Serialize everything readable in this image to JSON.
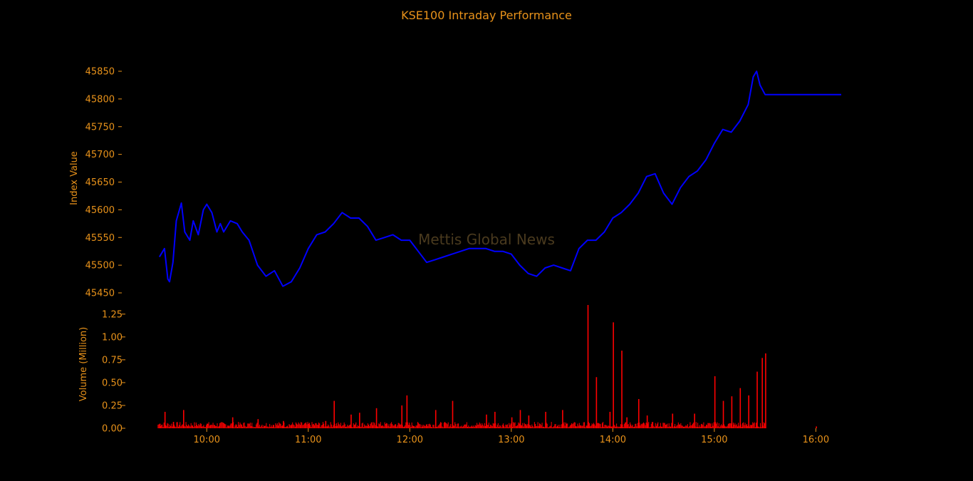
{
  "colors": {
    "background": "#000000",
    "text": "#e8921a",
    "index_line": "#0000ff",
    "volume_bars": "#ff0000",
    "watermark": "#4a3a1e"
  },
  "watermark": "Mettis Global News",
  "chart_data": [
    {
      "type": "line",
      "title": "KSE100 Intraday Performance",
      "ylabel": "Index Value",
      "xlabel": "",
      "ylim": [
        45440,
        45860
      ],
      "yticks": [
        45450,
        45500,
        45550,
        45600,
        45650,
        45700,
        45750,
        45800,
        45850
      ],
      "ytick_labels": [
        "45450",
        "45500",
        "45550",
        "45600",
        "45650",
        "45700",
        "45750",
        "45800",
        "45850"
      ],
      "grid": false,
      "series": [
        {
          "x": [
            "09:32",
            "09:35",
            "09:37",
            "09:38",
            "09:40",
            "09:42",
            "09:45",
            "09:47",
            "09:50",
            "09:52",
            "09:55",
            "09:58",
            "10:00",
            "10:03",
            "10:06",
            "10:08",
            "10:10",
            "10:14",
            "10:18",
            "10:21",
            "10:25",
            "10:30",
            "10:35",
            "10:40",
            "10:45",
            "10:50",
            "10:55",
            "11:00",
            "11:05",
            "11:10",
            "11:15",
            "11:20",
            "11:25",
            "11:30",
            "11:35",
            "11:40",
            "11:45",
            "11:50",
            "11:55",
            "12:00",
            "12:05",
            "12:10",
            "12:15",
            "12:20",
            "12:25",
            "12:30",
            "12:35",
            "12:40",
            "12:45",
            "12:50",
            "12:55",
            "13:00",
            "13:05",
            "13:10",
            "13:15",
            "13:20",
            "13:25",
            "13:30",
            "13:35",
            "13:40",
            "13:45",
            "13:50",
            "13:55",
            "14:00",
            "14:05",
            "14:10",
            "14:15",
            "14:20",
            "14:25",
            "14:30",
            "14:35",
            "14:40",
            "14:45",
            "14:50",
            "14:55",
            "15:00",
            "15:05",
            "15:10",
            "15:15",
            "15:20",
            "15:23",
            "15:25",
            "15:27",
            "15:30",
            "16:15"
          ],
          "y": [
            45515,
            45530,
            45475,
            45470,
            45505,
            45580,
            45612,
            45560,
            45545,
            45580,
            45555,
            45600,
            45610,
            45595,
            45560,
            45575,
            45560,
            45580,
            45575,
            45560,
            45545,
            45500,
            45480,
            45490,
            45462,
            45470,
            45495,
            45530,
            45555,
            45560,
            45575,
            45595,
            45585,
            45585,
            45570,
            45545,
            45550,
            45555,
            45545,
            45545,
            45525,
            45505,
            45510,
            45515,
            45520,
            45525,
            45530,
            45530,
            45530,
            45525,
            45525,
            45520,
            45500,
            45485,
            45480,
            45495,
            45500,
            45495,
            45490,
            45530,
            45545,
            45545,
            45560,
            45585,
            45595,
            45610,
            45630,
            45660,
            45665,
            45630,
            45610,
            45640,
            45660,
            45670,
            45690,
            45720,
            45745,
            45740,
            45760,
            45790,
            45840,
            45850,
            45825,
            45808,
            45808
          ]
        }
      ]
    },
    {
      "type": "bar",
      "title": "",
      "ylabel": "Volume (Million)",
      "xlabel": "",
      "ylim": [
        0,
        1.35
      ],
      "yticks": [
        0,
        0.25,
        0.5,
        0.75,
        1.0,
        1.25
      ],
      "ytick_labels": [
        "0.00",
        "0.25",
        "0.50",
        "0.75",
        "1.00",
        "1.25"
      ],
      "xticks": [
        "10:00",
        "11:00",
        "12:00",
        "13:00",
        "14:00",
        "15:00",
        "16:00"
      ],
      "grid": false,
      "bars": {
        "x": [
          "09:32",
          "09:35",
          "09:40",
          "09:46",
          "10:00",
          "10:15",
          "10:30",
          "10:45",
          "11:00",
          "11:10",
          "11:15",
          "11:25",
          "11:30",
          "11:40",
          "11:55",
          "11:58",
          "12:15",
          "12:25",
          "12:45",
          "12:50",
          "13:00",
          "13:05",
          "13:10",
          "13:20",
          "13:30",
          "13:45",
          "13:50",
          "13:58",
          "14:00",
          "14:05",
          "14:08",
          "14:15",
          "14:20",
          "14:35",
          "14:48",
          "15:00",
          "15:05",
          "15:10",
          "15:15",
          "15:20",
          "15:25",
          "15:28",
          "15:30",
          "16:00"
        ],
        "values": [
          0.05,
          0.18,
          0.07,
          0.2,
          0.05,
          0.12,
          0.1,
          0.08,
          0.05,
          0.08,
          0.3,
          0.15,
          0.17,
          0.22,
          0.25,
          0.36,
          0.2,
          0.3,
          0.15,
          0.18,
          0.12,
          0.2,
          0.14,
          0.18,
          0.2,
          1.35,
          0.56,
          0.18,
          1.16,
          0.85,
          0.12,
          0.32,
          0.14,
          0.16,
          0.16,
          0.57,
          0.3,
          0.35,
          0.44,
          0.36,
          0.62,
          0.77,
          0.82,
          0.02
        ],
        "background_noise_level": 0.05
      }
    }
  ]
}
